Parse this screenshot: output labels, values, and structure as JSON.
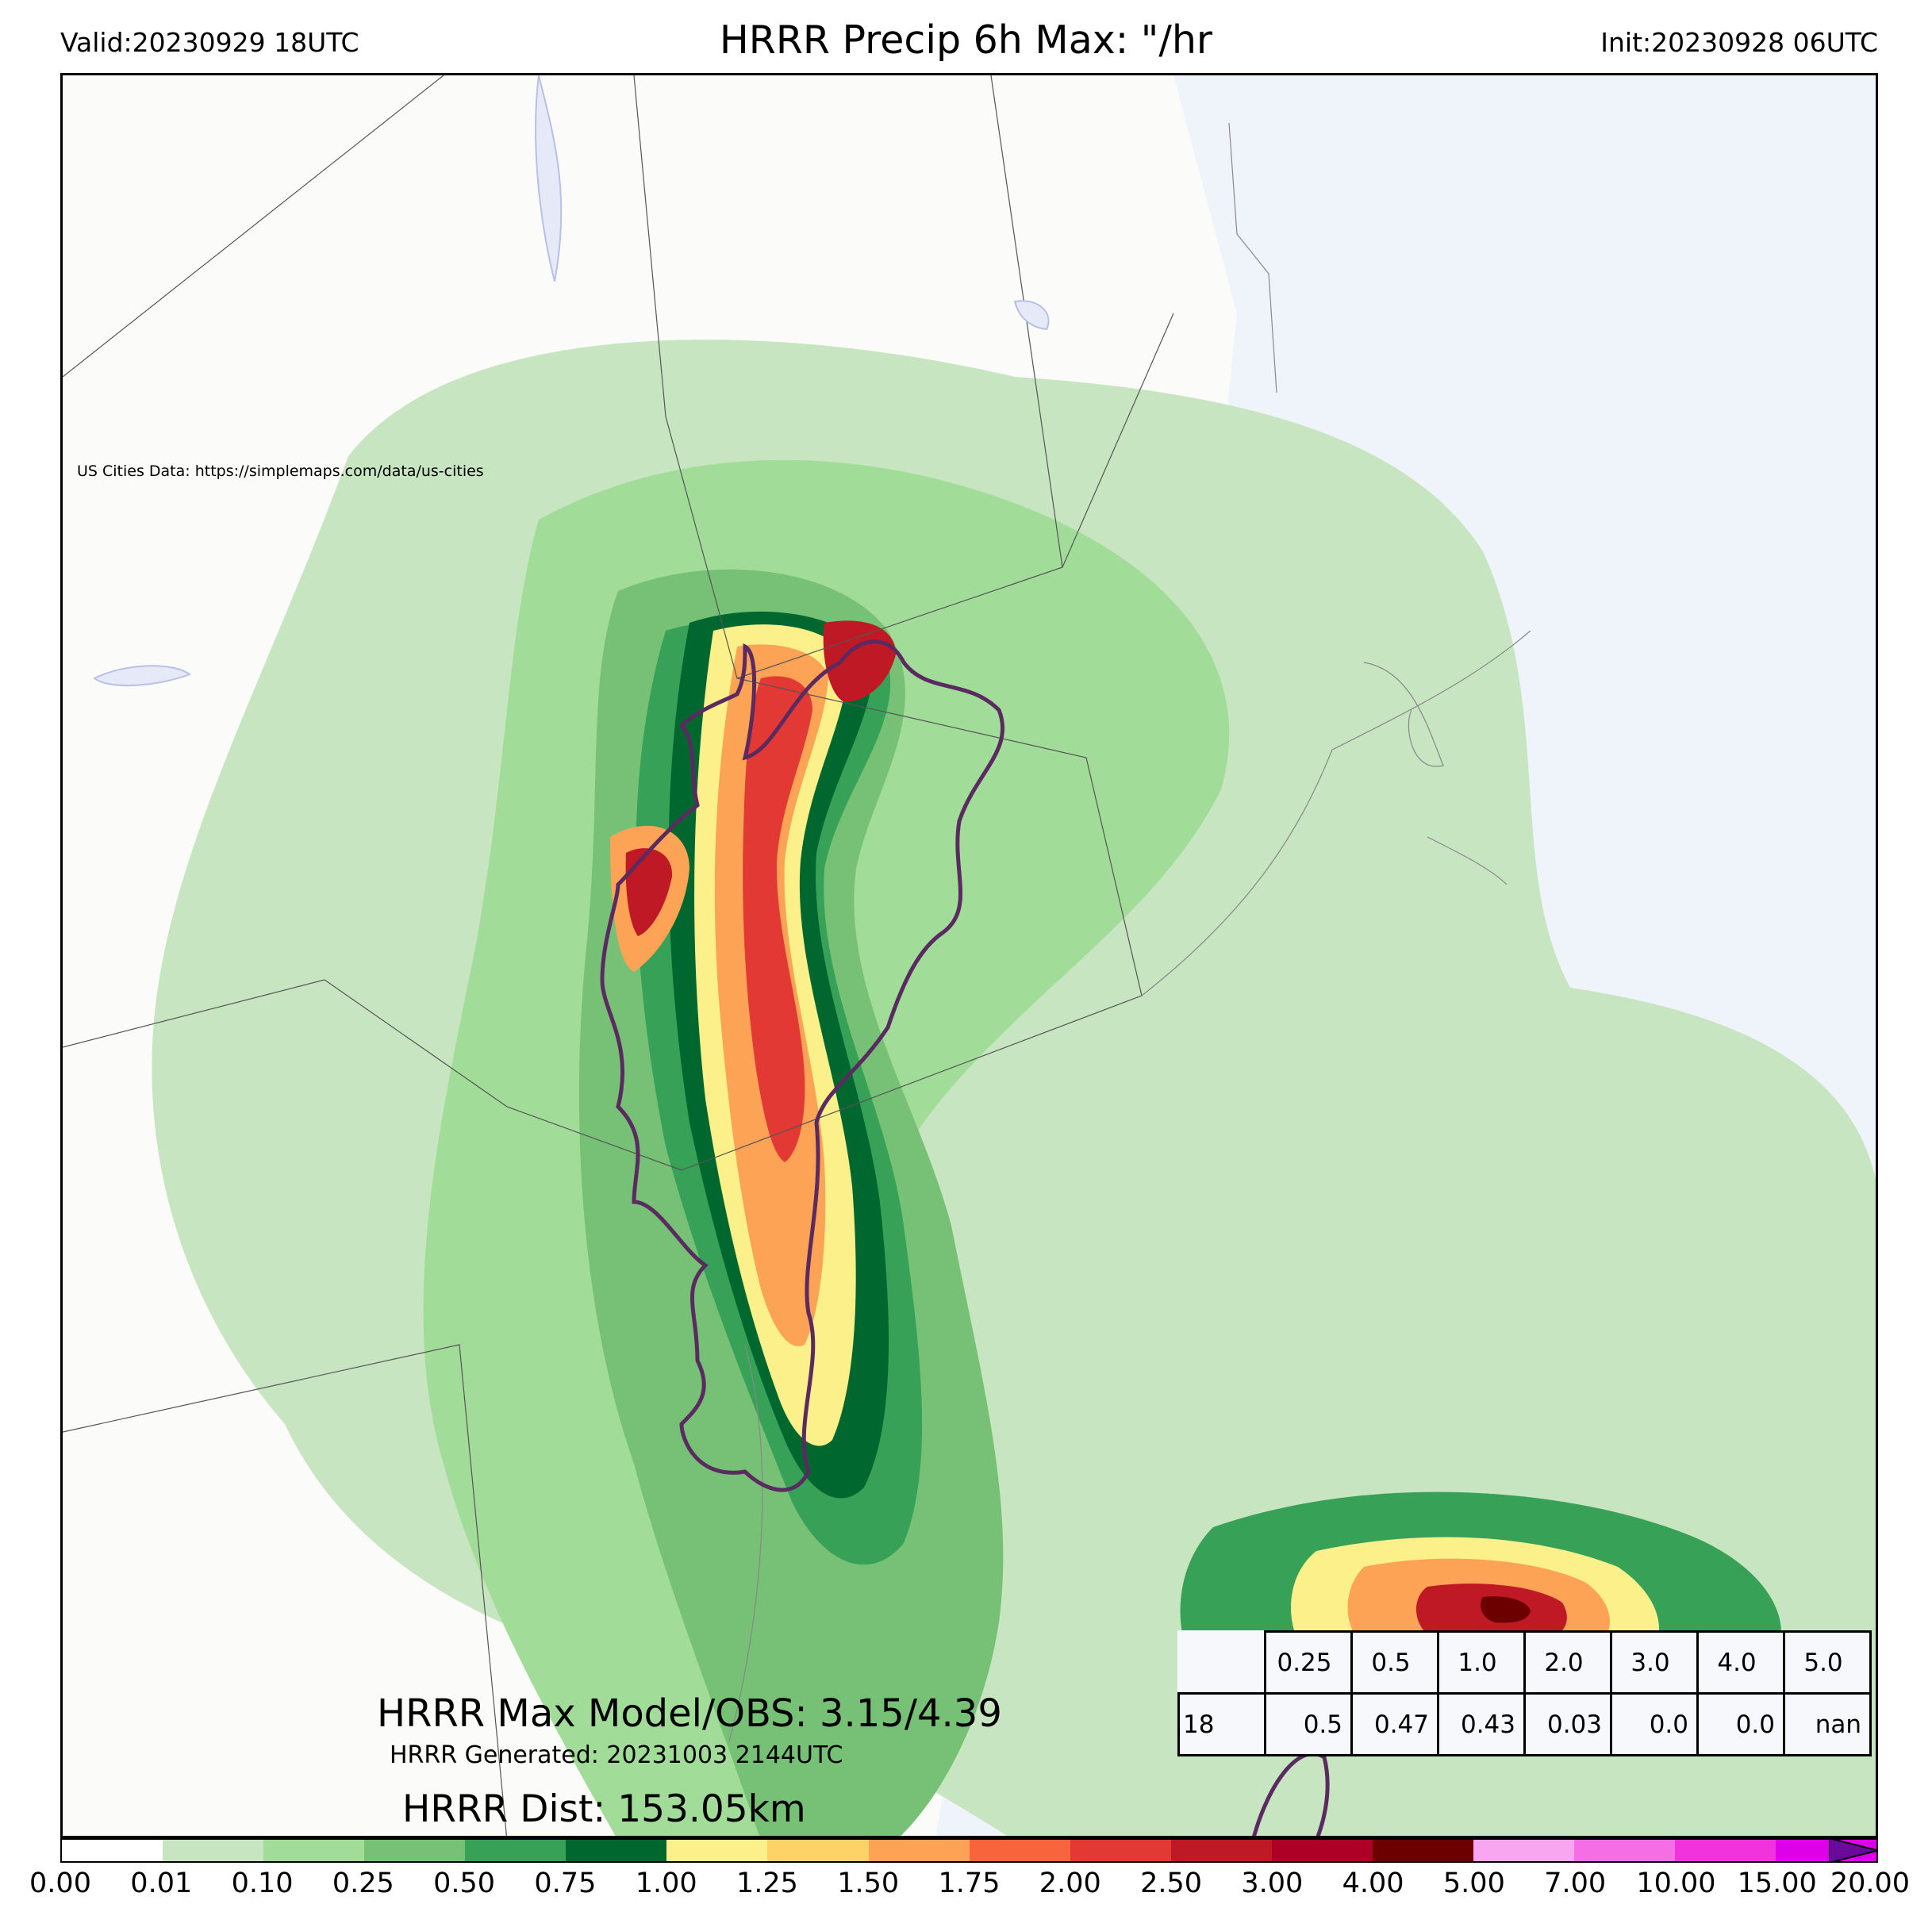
{
  "header": {
    "valid": "Valid:20230929 18UTC",
    "title": "HRRR Precip 6h Max: \"/hr",
    "init": "Init:20230928 06UTC"
  },
  "map": {
    "credit": "US Cities Data: https://simplemaps.com/data/us-cities",
    "max_model_obs": "HRRR Max Model/OBS: 3.15/4.39",
    "generated": "HRRR Generated: 20231003 2144UTC",
    "dist": "HRRR Dist: 153.05km"
  },
  "threshold_table": {
    "headers": [
      "0.25",
      "0.5",
      "1.0",
      "2.0",
      "3.0",
      "4.0",
      "5.0"
    ],
    "row_label": "18",
    "values": [
      "0.5",
      "0.47",
      "0.43",
      "0.03",
      "0.0",
      "0.0",
      "nan"
    ]
  },
  "colorbar": {
    "ticks": [
      "0.00",
      "0.01",
      "0.10",
      "0.25",
      "0.50",
      "0.75",
      "1.00",
      "1.25",
      "1.50",
      "1.75",
      "2.00",
      "2.50",
      "3.00",
      "4.00",
      "5.00",
      "7.00",
      "10.00",
      "15.00",
      "20.00"
    ],
    "colors": [
      "#ffffff",
      "#c7e5c0",
      "#a1dc98",
      "#76c176",
      "#36a157",
      "#00682f",
      "#fbf08a",
      "#fdd266",
      "#fca355",
      "#f8643c",
      "#e33934",
      "#c01926",
      "#ae0026",
      "#6c0000",
      "#f7a6ef",
      "#f56ee5",
      "#f133dd",
      "#dd00e8",
      "#9404c1"
    ],
    "extend_color": "#6a0a9c"
  },
  "colors": {
    "land": "#fbfbf9",
    "water": "#f0f4fa",
    "obs_contour": "#5a2a61"
  }
}
